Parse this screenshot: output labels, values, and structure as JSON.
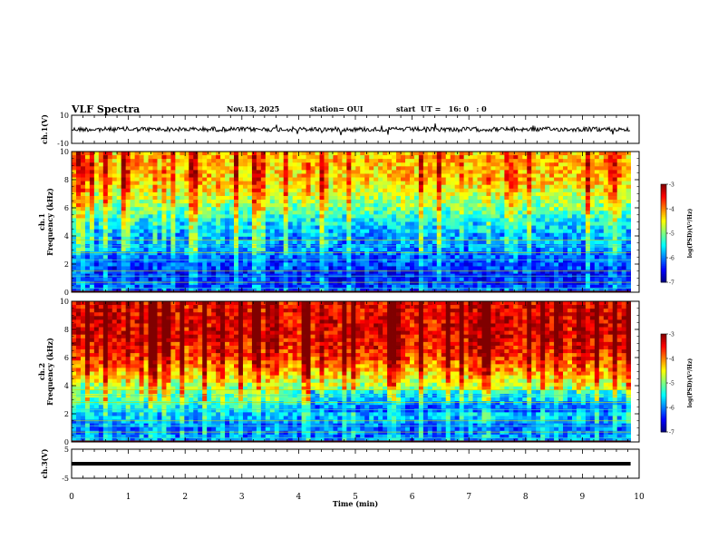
{
  "header": {
    "title": "VLF Spectra",
    "date": "Nov.13, 2025",
    "station": "station= OUI",
    "start": "start  UT =   16: 0   : 0"
  },
  "chart_data": [
    {
      "type": "line",
      "name": "ch1-waveform",
      "ylabel": "ch.1(V)",
      "ylim": [
        -10,
        10
      ],
      "yticks": [
        {
          "v": 10,
          "label": "10"
        },
        {
          "v": -10,
          "label": "-10"
        }
      ],
      "xlim": [
        0,
        10
      ],
      "description_values": {
        "baseline": 0
      }
    },
    {
      "type": "heatmap",
      "name": "ch1-spectrogram",
      "ylabel": "ch.1",
      "ylabel2": "Frequency  (kHz)",
      "ylim": [
        0,
        10
      ],
      "yticks": [
        {
          "v": 0,
          "label": "0"
        },
        {
          "v": 2,
          "label": "2"
        },
        {
          "v": 4,
          "label": "4"
        },
        {
          "v": 6,
          "label": "6"
        },
        {
          "v": 8,
          "label": "8"
        },
        {
          "v": 10,
          "label": "10"
        }
      ],
      "xlim": [
        0,
        10
      ],
      "data_extent_min": 9.85,
      "colorbar": {
        "label": "log(PSD)(V²/Hz)",
        "range": [
          -7,
          -3
        ],
        "ticks": [
          {
            "v": -3,
            "label": "-3"
          },
          {
            "v": -4,
            "label": "-4"
          },
          {
            "v": -5,
            "label": "-5"
          },
          {
            "v": -6,
            "label": "-6"
          },
          {
            "v": -7,
            "label": "-7"
          }
        ]
      },
      "profile": [
        {
          "f": 0.0,
          "level": -6.2
        },
        {
          "f": 1.0,
          "level": -6.5
        },
        {
          "f": 2.0,
          "level": -6.3
        },
        {
          "f": 3.0,
          "level": -6.1
        },
        {
          "f": 4.0,
          "level": -6.0
        },
        {
          "f": 5.0,
          "level": -5.7
        },
        {
          "f": 6.0,
          "level": -5.2
        },
        {
          "f": 7.0,
          "level": -4.8
        },
        {
          "f": 8.0,
          "level": -4.5
        },
        {
          "f": 9.0,
          "level": -4.4
        },
        {
          "f": 10.0,
          "level": -4.4
        }
      ]
    },
    {
      "type": "heatmap",
      "name": "ch2-spectrogram",
      "ylabel": "ch.2",
      "ylabel2": "Frequency  (kHz)",
      "ylim": [
        0,
        10
      ],
      "yticks": [
        {
          "v": 0,
          "label": "0"
        },
        {
          "v": 2,
          "label": "2"
        },
        {
          "v": 4,
          "label": "4"
        },
        {
          "v": 6,
          "label": "6"
        },
        {
          "v": 8,
          "label": "8"
        },
        {
          "v": 10,
          "label": "10"
        }
      ],
      "xlim": [
        0,
        10
      ],
      "data_extent_min": 9.85,
      "colorbar": {
        "label": "log(PSD)(V²/Hz)",
        "range": [
          -7,
          -3
        ],
        "ticks": [
          {
            "v": -3,
            "label": "-3"
          },
          {
            "v": -4,
            "label": "-4"
          },
          {
            "v": -5,
            "label": "-5"
          },
          {
            "v": -6,
            "label": "-6"
          },
          {
            "v": -7,
            "label": "-7"
          }
        ]
      },
      "profile": [
        {
          "f": 0.0,
          "level": -6.0
        },
        {
          "f": 1.0,
          "level": -6.2
        },
        {
          "f": 2.0,
          "level": -5.8
        },
        {
          "f": 3.0,
          "level": -5.4
        },
        {
          "f": 4.0,
          "level": -5.0
        },
        {
          "f": 5.0,
          "level": -4.4
        },
        {
          "f": 6.0,
          "level": -3.9
        },
        {
          "f": 7.0,
          "level": -3.7
        },
        {
          "f": 8.0,
          "level": -3.6
        },
        {
          "f": 9.0,
          "level": -3.6
        },
        {
          "f": 10.0,
          "level": -3.6
        }
      ]
    },
    {
      "type": "line",
      "name": "ch3-waveform",
      "ylabel": "ch.3(V)",
      "ylim": [
        -5,
        5
      ],
      "yticks": [
        {
          "v": 5,
          "label": "5"
        },
        {
          "v": -5,
          "label": "-5"
        }
      ],
      "xlim": [
        0,
        10
      ],
      "description_values": {
        "baseline": 0
      }
    }
  ],
  "xaxis": {
    "label": "Time  (min)",
    "ticks": [
      {
        "v": 0,
        "label": "0"
      },
      {
        "v": 1,
        "label": "1"
      },
      {
        "v": 2,
        "label": "2"
      },
      {
        "v": 3,
        "label": "3"
      },
      {
        "v": 4,
        "label": "4"
      },
      {
        "v": 5,
        "label": "5"
      },
      {
        "v": 6,
        "label": "6"
      },
      {
        "v": 7,
        "label": "7"
      },
      {
        "v": 8,
        "label": "8"
      },
      {
        "v": 9,
        "label": "9"
      },
      {
        "v": 10,
        "label": "10"
      }
    ]
  }
}
